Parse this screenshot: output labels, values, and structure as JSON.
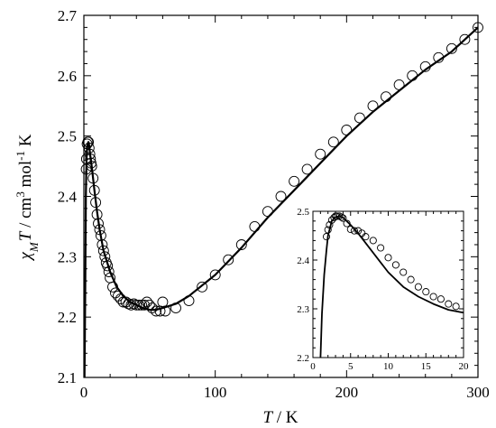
{
  "chart_data": [
    {
      "type": "scatter",
      "xlabel": "T / K",
      "ylabel": "χMT / cm3 mol-1 K",
      "xlim": [
        0,
        300
      ],
      "ylim": [
        2.1,
        2.7
      ],
      "xticks": [
        "0",
        "100",
        "200",
        "300"
      ],
      "yticks": [
        "2.1",
        "2.2",
        "2.3",
        "2.4",
        "2.5",
        "2.6",
        "2.7"
      ],
      "grid": false,
      "legend": "none",
      "series": [
        {
          "style": "open-circles",
          "x": [
            1.8,
            2,
            2.5,
            3,
            3.5,
            4,
            4.5,
            5,
            5.5,
            6,
            7,
            8,
            9,
            10,
            11,
            12,
            13,
            14,
            15,
            16,
            17,
            18,
            19,
            20,
            22,
            24,
            26,
            28,
            30,
            32,
            34,
            36,
            38,
            40,
            42,
            44,
            46,
            48,
            50,
            52,
            55,
            58,
            60,
            62,
            70,
            80,
            90,
            100,
            110,
            120,
            130,
            140,
            150,
            160,
            170,
            180,
            190,
            200,
            210,
            220,
            230,
            240,
            250,
            260,
            270,
            280,
            290,
            300
          ],
          "y": [
            2.445,
            2.462,
            2.487,
            2.49,
            2.49,
            2.48,
            2.47,
            2.462,
            2.455,
            2.45,
            2.43,
            2.41,
            2.39,
            2.37,
            2.355,
            2.345,
            2.335,
            2.32,
            2.31,
            2.3,
            2.29,
            2.285,
            2.275,
            2.265,
            2.25,
            2.24,
            2.235,
            2.23,
            2.225,
            2.225,
            2.222,
            2.22,
            2.222,
            2.22,
            2.22,
            2.22,
            2.22,
            2.225,
            2.22,
            2.215,
            2.21,
            2.21,
            2.225,
            2.21,
            2.215,
            2.227,
            2.25,
            2.27,
            2.295,
            2.32,
            2.35,
            2.375,
            2.4,
            2.425,
            2.445,
            2.47,
            2.49,
            2.51,
            2.53,
            2.55,
            2.565,
            2.585,
            2.6,
            2.615,
            2.63,
            2.645,
            2.66,
            2.68
          ]
        },
        {
          "style": "solid-line",
          "x": [
            0.5,
            1,
            1.5,
            2,
            2.5,
            3,
            3.5,
            4,
            5,
            6,
            8,
            10,
            12,
            15,
            20,
            25,
            30,
            35,
            40,
            45,
            50,
            55,
            60,
            70,
            80,
            100,
            120,
            140,
            160,
            180,
            200,
            220,
            240,
            260,
            280,
            300
          ],
          "y": [
            2.1,
            2.24,
            2.4,
            2.46,
            2.48,
            2.488,
            2.49,
            2.485,
            2.465,
            2.45,
            2.41,
            2.375,
            2.345,
            2.31,
            2.275,
            2.25,
            2.235,
            2.225,
            2.22,
            2.215,
            2.212,
            2.212,
            2.215,
            2.222,
            2.235,
            2.27,
            2.315,
            2.365,
            2.41,
            2.455,
            2.5,
            2.54,
            2.575,
            2.61,
            2.64,
            2.68
          ]
        }
      ]
    },
    {
      "type": "scatter",
      "xlim": [
        0,
        20
      ],
      "ylim": [
        2.2,
        2.5
      ],
      "xticks": [
        "0",
        "5",
        "10",
        "15",
        "20"
      ],
      "yticks": [
        "2.2",
        "2.3",
        "2.4",
        "2.5"
      ],
      "grid": false,
      "legend": "none",
      "series": [
        {
          "style": "open-circles",
          "x": [
            1.8,
            2,
            2.2,
            2.5,
            2.8,
            3,
            3.2,
            3.5,
            3.8,
            4,
            4.5,
            5,
            5.5,
            6,
            6.5,
            7,
            8,
            9,
            10,
            11,
            12,
            13,
            14,
            15,
            16,
            17,
            18,
            19
          ],
          "y": [
            2.448,
            2.462,
            2.472,
            2.482,
            2.487,
            2.49,
            2.49,
            2.49,
            2.488,
            2.486,
            2.475,
            2.463,
            2.46,
            2.46,
            2.455,
            2.448,
            2.44,
            2.425,
            2.405,
            2.39,
            2.375,
            2.36,
            2.345,
            2.335,
            2.325,
            2.32,
            2.31,
            2.305
          ]
        },
        {
          "style": "solid-line",
          "x": [
            1,
            1.2,
            1.5,
            1.8,
            2,
            2.5,
            3,
            3.5,
            4,
            5,
            6,
            7,
            8,
            9,
            10,
            12,
            14,
            16,
            18,
            20
          ],
          "y": [
            2.2,
            2.29,
            2.37,
            2.42,
            2.45,
            2.48,
            2.488,
            2.49,
            2.487,
            2.472,
            2.455,
            2.435,
            2.415,
            2.395,
            2.375,
            2.345,
            2.325,
            2.31,
            2.298,
            2.292
          ]
        }
      ]
    }
  ]
}
